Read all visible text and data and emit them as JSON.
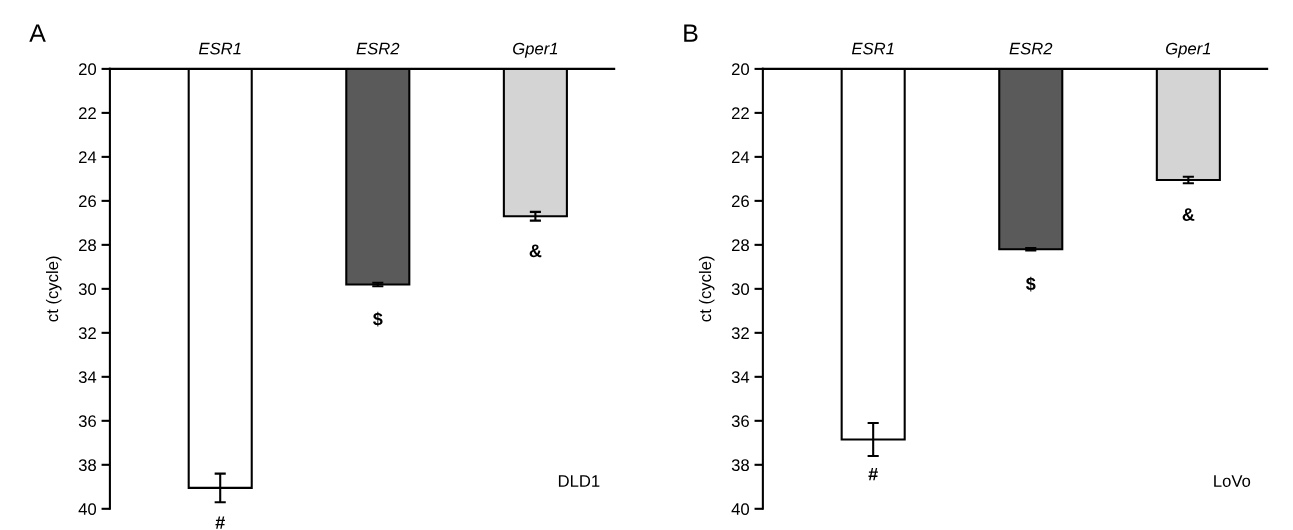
{
  "chart_data": [
    {
      "type": "bar",
      "ylabel": "ct (cycle)",
      "categories": [
        "ESR1",
        "ESR2",
        "Gper1"
      ],
      "values": [
        39.05,
        29.8,
        26.7
      ],
      "colors": [
        "#ffffff",
        "#5a5a5a",
        "#d4d4d4"
      ],
      "errors": [
        0.65,
        0.08,
        0.2
      ],
      "ylim": [
        40,
        20
      ],
      "yticks": [
        20,
        22,
        24,
        26,
        28,
        30,
        32,
        34,
        36,
        38,
        40
      ],
      "grid": false,
      "legend": false,
      "annotations": [
        "A",
        "DLD1",
        {
          "text": "#",
          "x": "ESR1",
          "y": 39.05
        },
        {
          "text": "$",
          "x": "ESR2",
          "y": 29.8
        },
        {
          "text": "&",
          "x": "Gper1",
          "y": 26.7
        }
      ]
    },
    {
      "type": "bar",
      "ylabel": "ct (cycle)",
      "categories": [
        "ESR1",
        "ESR2",
        "Gper1"
      ],
      "values": [
        36.85,
        28.2,
        25.05
      ],
      "colors": [
        "#ffffff",
        "#5a5a5a",
        "#d4d4d4"
      ],
      "errors": [
        0.75,
        0.06,
        0.15
      ],
      "ylim": [
        40,
        20
      ],
      "yticks": [
        20,
        22,
        24,
        26,
        28,
        30,
        32,
        34,
        36,
        38,
        40
      ],
      "grid": false,
      "legend": false,
      "annotations": [
        "B",
        "LoVo",
        {
          "text": "#",
          "x": "ESR1",
          "y": 36.85
        },
        {
          "text": "$",
          "x": "ESR2",
          "y": 28.2
        },
        {
          "text": "&",
          "x": "Gper1",
          "y": 25.05
        }
      ]
    }
  ]
}
